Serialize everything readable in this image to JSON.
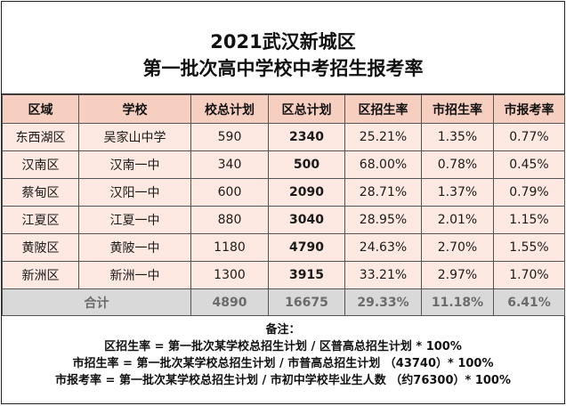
{
  "title": {
    "line1": "2021武汉新城区",
    "line2": "第一批次高中学校中考招生报考率"
  },
  "table": {
    "headers": [
      "区域",
      "学校",
      "校总计划",
      "区总计划",
      "区招生率",
      "市招生率",
      "市报考率"
    ],
    "rows": [
      [
        "东西湖区",
        "吴家山中学",
        "590",
        "2340",
        "25.21%",
        "1.35%",
        "0.77%"
      ],
      [
        "汉南区",
        "汉南一中",
        "340",
        "500",
        "68.00%",
        "0.78%",
        "0.45%"
      ],
      [
        "蔡甸区",
        "汉阳一中",
        "600",
        "2090",
        "28.71%",
        "1.37%",
        "0.79%"
      ],
      [
        "江夏区",
        "江夏一中",
        "880",
        "3040",
        "28.95%",
        "2.01%",
        "1.15%"
      ],
      [
        "黄陂区",
        "黄陂一中",
        "1180",
        "4790",
        "24.63%",
        "2.70%",
        "1.55%"
      ],
      [
        "新洲区",
        "新洲一中",
        "1300",
        "3915",
        "33.21%",
        "2.97%",
        "1.70%"
      ]
    ],
    "total": {
      "label": "合计",
      "values": [
        "4890",
        "16675",
        "29.33%",
        "11.18%",
        "6.41%"
      ]
    }
  },
  "notes": {
    "heading": "备注：",
    "lines": [
      "区招生率 = 第一批次某学校总招生计划 / 区普高总招生计划 * 100%",
      "市招生率 = 第一批次某学校总招生计划 / 市普高总招生计划 （43740）* 100%",
      "市报考率 = 第一批次某学校总招生计划 / 市初中学校毕业生人数 （约76300）* 100%"
    ]
  }
}
